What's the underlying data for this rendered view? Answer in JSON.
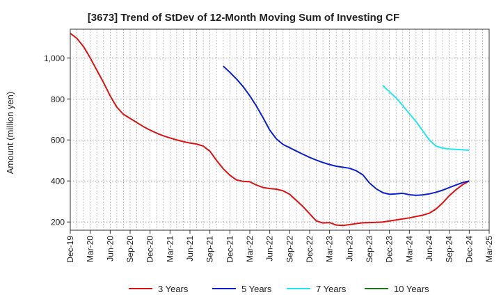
{
  "chart_data": {
    "type": "line",
    "title": "[3673]  Trend of StDev of 12-Month Moving Sum of Investing CF",
    "xlabel": "",
    "ylabel": "Amount (million yen)",
    "x_ticks": [
      "Dec-19",
      "Mar-20",
      "Jun-20",
      "Sep-20",
      "Dec-20",
      "Mar-21",
      "Jun-21",
      "Sep-21",
      "Dec-21",
      "Mar-22",
      "Jun-22",
      "Sep-22",
      "Dec-22",
      "Mar-23",
      "Jun-23",
      "Sep-23",
      "Dec-23",
      "Mar-24",
      "Jun-24",
      "Sep-24",
      "Dec-24",
      "Mar-25"
    ],
    "y_ticks": [
      200,
      400,
      600,
      800,
      1000
    ],
    "y_tick_labels": [
      "200",
      "400",
      "600",
      "800",
      "1,000"
    ],
    "ylim": [
      160,
      1140
    ],
    "grid": true,
    "legend_position": "bottom",
    "series": [
      {
        "name": "3 Years",
        "color": "#dd1111",
        "start": "Dec-19",
        "values": [
          1120,
          1095,
          1055,
          1000,
          940,
          880,
          815,
          760,
          725,
          705,
          685,
          665,
          648,
          633,
          620,
          610,
          600,
          592,
          585,
          580,
          570,
          545,
          500,
          460,
          428,
          405,
          398,
          396,
          380,
          368,
          363,
          360,
          352,
          335,
          305,
          275,
          240,
          205,
          195,
          197,
          185,
          183,
          187,
          192,
          196,
          197,
          198,
          200,
          205,
          210,
          215,
          220,
          227,
          233,
          243,
          263,
          293,
          328,
          357,
          382,
          400
        ]
      },
      {
        "name": "5 Years",
        "color": "#0a1fd0",
        "start": "Nov-21",
        "values": [
          960,
          930,
          897,
          860,
          815,
          765,
          708,
          648,
          605,
          578,
          562,
          546,
          530,
          515,
          502,
          490,
          480,
          472,
          467,
          462,
          450,
          430,
          390,
          362,
          343,
          335,
          337,
          340,
          333,
          330,
          332,
          337,
          345,
          355,
          368,
          380,
          392,
          400
        ]
      },
      {
        "name": "7 Years",
        "color": "#22e6ee",
        "start": "Nov-23",
        "values": [
          865,
          835,
          805,
          768,
          728,
          690,
          645,
          600,
          570,
          560,
          556,
          554,
          552,
          550
        ]
      },
      {
        "name": "10 Years",
        "color": "#1a7a1a",
        "start": "",
        "values": []
      }
    ]
  }
}
